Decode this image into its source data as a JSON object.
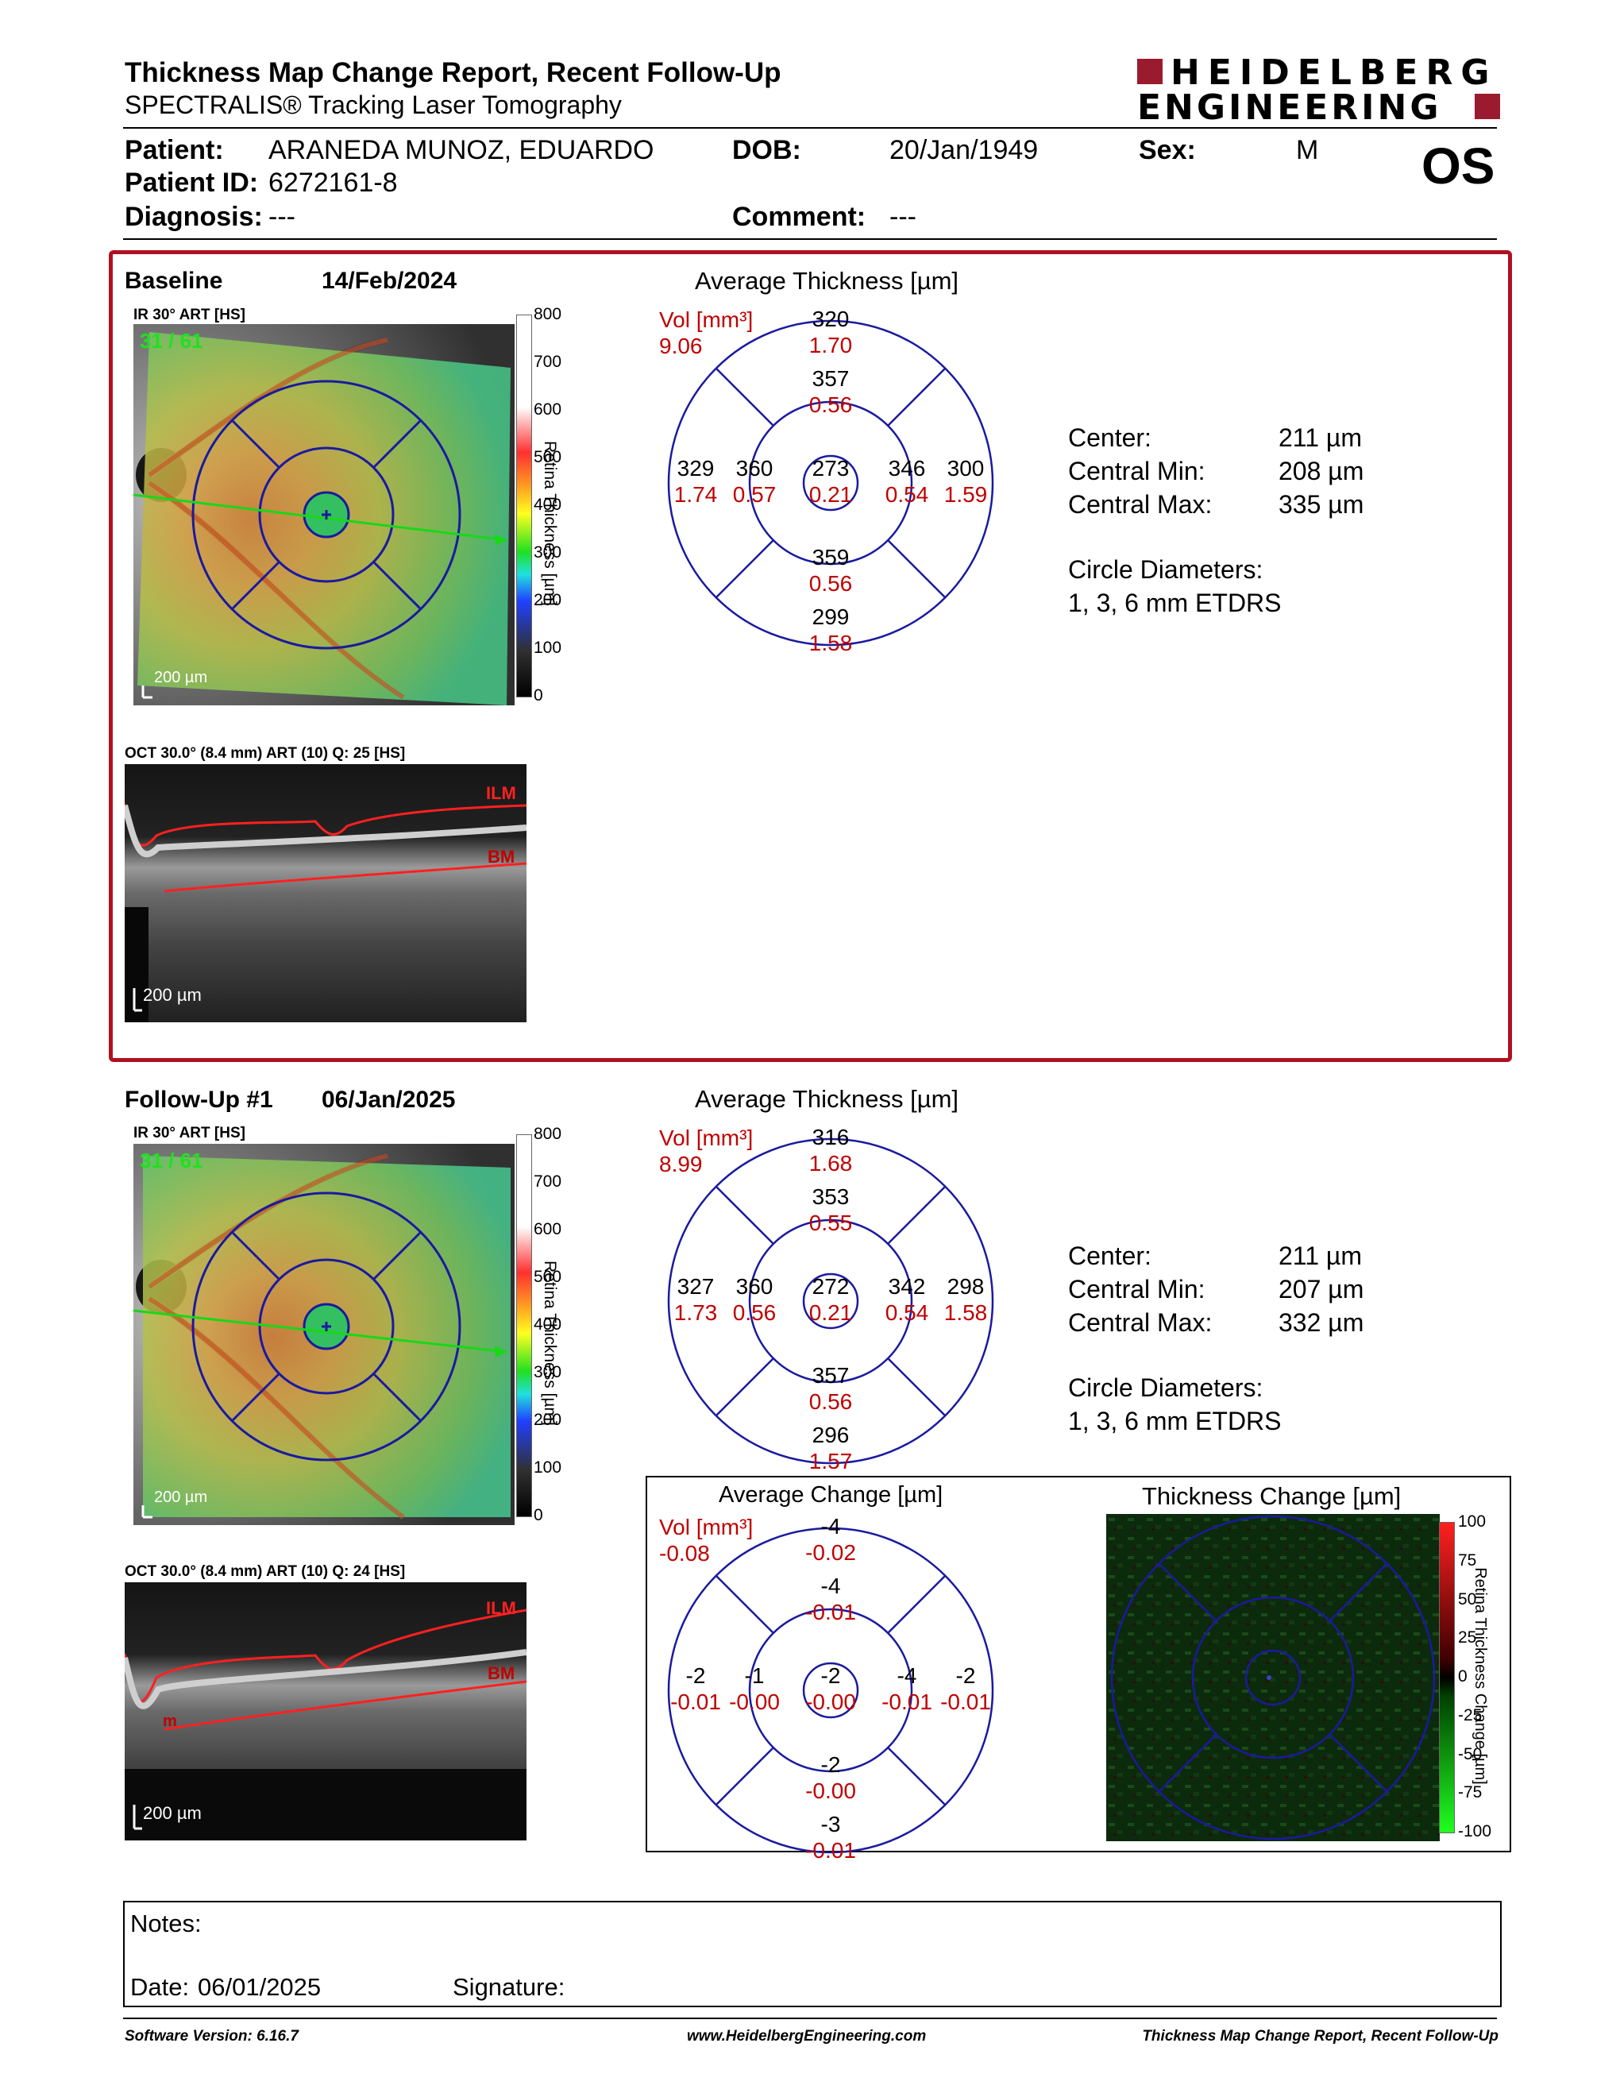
{
  "header": {
    "title": "Thickness Map Change Report, Recent Follow-Up",
    "subtitle": "SPECTRALIS® Tracking Laser Tomography",
    "logo_line1": "HEIDELBERG",
    "logo_line2": "ENGINEERING",
    "brand_color": "#9b1b2e"
  },
  "patient": {
    "patient_label": "Patient:",
    "patient": "ARANEDA MUNOZ, EDUARDO",
    "id_label": "Patient ID:",
    "id": "6272161-8",
    "diagnosis_label": "Diagnosis:",
    "diagnosis": "---",
    "dob_label": "DOB:",
    "dob": "20/Jan/1949",
    "comment_label": "Comment:",
    "comment": "---",
    "sex_label": "Sex:",
    "sex": "M",
    "eye": "OS"
  },
  "scale": {
    "ticks": [
      "800",
      "700",
      "600",
      "500",
      "400",
      "300",
      "200",
      "100",
      "0"
    ],
    "axis_label": "Retina Thickness [µm]",
    "scalebar": "200 µm"
  },
  "baseline": {
    "label": "Baseline",
    "date": "14/Feb/2024",
    "ir_label": "IR 30° ART [HS]",
    "ir_counter": "31 / 61",
    "oct_label": "OCT 30.0° (8.4 mm) ART (10) Q: 25 [HS]",
    "ilm": "ILM",
    "bm": "BM",
    "avg_title": "Average Thickness [µm]",
    "vol_label": "Vol [mm³]",
    "vol_total": "9.06",
    "sectors": {
      "outer_sup": [
        "320",
        "1.70"
      ],
      "inner_sup": [
        "357",
        "0.56"
      ],
      "outer_nas": [
        "329",
        "1.74"
      ],
      "inner_nas": [
        "360",
        "0.57"
      ],
      "center": [
        "273",
        "0.21"
      ],
      "inner_tmp": [
        "346",
        "0.54"
      ],
      "outer_tmp": [
        "300",
        "1.59"
      ],
      "inner_inf": [
        "359",
        "0.56"
      ],
      "outer_inf": [
        "299",
        "1.58"
      ]
    },
    "stats": {
      "center_label": "Center:",
      "center": "211 µm",
      "min_label": "Central Min:",
      "min": "208 µm",
      "max_label": "Central Max:",
      "max": "335 µm",
      "circ_label": "Circle Diameters:",
      "circ": "1, 3, 6 mm ETDRS"
    }
  },
  "followup": {
    "label": "Follow-Up #1",
    "date": "06/Jan/2025",
    "ir_label": "IR 30° ART [HS]",
    "ir_counter": "31 / 61",
    "oct_label": "OCT 30.0° (8.4 mm) ART (10) Q: 24 [HS]",
    "ilm": "ILM",
    "bm": "BM",
    "marker": "m",
    "avg_title": "Average Thickness [µm]",
    "vol_label": "Vol [mm³]",
    "vol_total": "8.99",
    "sectors": {
      "outer_sup": [
        "316",
        "1.68"
      ],
      "inner_sup": [
        "353",
        "0.55"
      ],
      "outer_nas": [
        "327",
        "1.73"
      ],
      "inner_nas": [
        "360",
        "0.56"
      ],
      "center": [
        "272",
        "0.21"
      ],
      "inner_tmp": [
        "342",
        "0.54"
      ],
      "outer_tmp": [
        "298",
        "1.58"
      ],
      "inner_inf": [
        "357",
        "0.56"
      ],
      "outer_inf": [
        "296",
        "1.57"
      ]
    },
    "stats": {
      "center_label": "Center:",
      "center": "211 µm",
      "min_label": "Central Min:",
      "min": "207 µm",
      "max_label": "Central Max:",
      "max": "332 µm",
      "circ_label": "Circle Diameters:",
      "circ": "1, 3, 6 mm ETDRS"
    }
  },
  "change": {
    "avg_title": "Average Change [µm]",
    "vol_label": "Vol [mm³]",
    "vol_total": "-0.08",
    "sectors": {
      "outer_sup": [
        "-4",
        "-0.02"
      ],
      "inner_sup": [
        "-4",
        "-0.01"
      ],
      "outer_nas": [
        "-2",
        "-0.01"
      ],
      "inner_nas": [
        "-1",
        "-0.00"
      ],
      "center": [
        "-2",
        "-0.00"
      ],
      "inner_tmp": [
        "-4",
        "-0.01"
      ],
      "outer_tmp": [
        "-2",
        "-0.01"
      ],
      "inner_inf": [
        "-2",
        "-0.00"
      ],
      "outer_inf": [
        "-3",
        "-0.01"
      ]
    },
    "map_title": "Thickness Change [µm]",
    "ticks": [
      "100",
      "75",
      "50",
      "25",
      "0",
      "-25",
      "-50",
      "-75",
      "-100"
    ],
    "axis_label": "Retina Thickness Change [µm]"
  },
  "notes": {
    "notes_label": "Notes:",
    "date_label": "Date:",
    "date": "06/01/2025",
    "signature_label": "Signature:"
  },
  "footer": {
    "version": "Software Version: 6.16.7",
    "url": "www.HeidelbergEngineering.com",
    "report": "Thickness Map Change Report, Recent Follow-Up"
  }
}
